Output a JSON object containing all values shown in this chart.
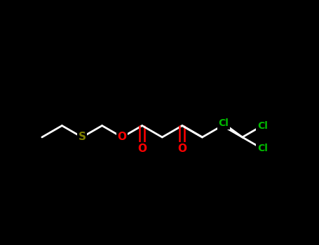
{
  "background_color": "#000000",
  "bond_color": "#ffffff",
  "bond_width": 2.0,
  "atom_colors": {
    "O": "#ff0000",
    "S": "#808000",
    "Cl": "#00bb00",
    "C": "#ffffff"
  },
  "font_size_atom": 11,
  "font_size_cl": 10,
  "figsize": [
    4.55,
    3.5
  ],
  "dpi": 100,
  "xlim": [
    0,
    455
  ],
  "ylim": [
    0,
    350
  ]
}
